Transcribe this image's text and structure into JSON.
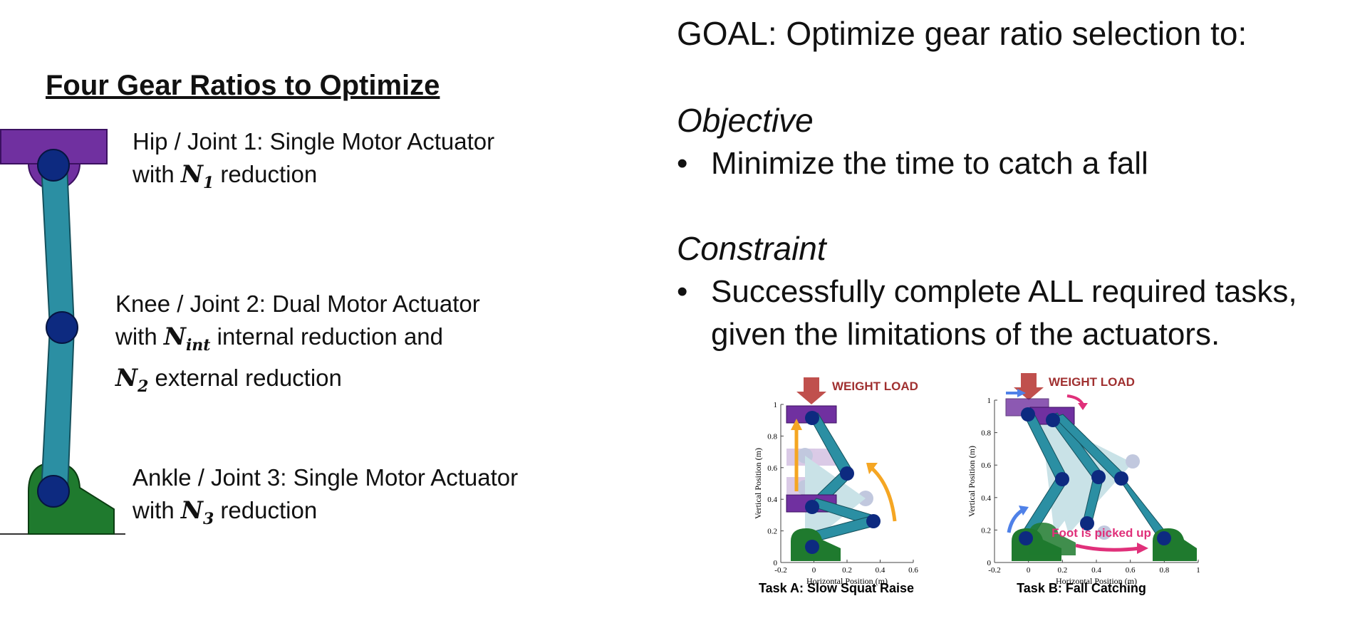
{
  "left": {
    "title": "Four Gear Ratios to Optimize",
    "hip": {
      "line1": "Hip / Joint 1: Single Motor Actuator",
      "pre": "with ",
      "sym": "N",
      "sub": "1",
      "post": " reduction"
    },
    "knee": {
      "line1": "Knee / Joint 2: Dual Motor Actuator",
      "pre": "with ",
      "sym": "N",
      "sub": "int",
      "post": " internal reduction and",
      "sym2": "N",
      "sub2": "2",
      "post2": " external reduction"
    },
    "ankle": {
      "line1": "Ankle / Joint 3: Single Motor Actuator",
      "pre": "with ",
      "sym": "N",
      "sub": "3",
      "post": " reduction"
    }
  },
  "right": {
    "goal": "GOAL: Optimize gear ratio selection to:",
    "objective_heading": "Objective",
    "objective_bullet": "Minimize the time to catch a fall",
    "constraint_heading": "Constraint",
    "constraint_line1": "Successfully complete ALL required tasks,",
    "constraint_line2": "given the limitations of the actuators.",
    "bullet_char": "•"
  },
  "taskA": {
    "weight_label": "WEIGHT LOAD",
    "caption": "Task A: Slow Squat Raise",
    "xlabel": "Horizontal Position (m)",
    "ylabel": "Vertical Position (m)",
    "xticks": [
      "-0.2",
      "0",
      "0.2",
      "0.4",
      "0.6"
    ],
    "yticks": [
      "0",
      "0.2",
      "0.4",
      "0.6",
      "0.8",
      "1"
    ]
  },
  "taskB": {
    "weight_label": "WEIGHT LOAD",
    "foot_label": "Foot is picked up",
    "caption": "Task B: Fall Catching",
    "xlabel": "Horizontal Position (m)",
    "ylabel": "Vertical Position (m)",
    "xticks": [
      "-0.2",
      "0",
      "0.2",
      "0.4",
      "0.6",
      "0.8",
      "1"
    ],
    "yticks": [
      "0",
      "0.2",
      "0.4",
      "0.6",
      "0.8",
      "1"
    ]
  },
  "colors": {
    "purple": "#7030A0",
    "teal": "#2B8FA3",
    "joint": "#0D2A80",
    "green": "#1F7A2E",
    "weight": "#C0504D",
    "orange": "#F5A623",
    "pink": "#E0307A",
    "blue_arrow": "#4F81E8"
  }
}
